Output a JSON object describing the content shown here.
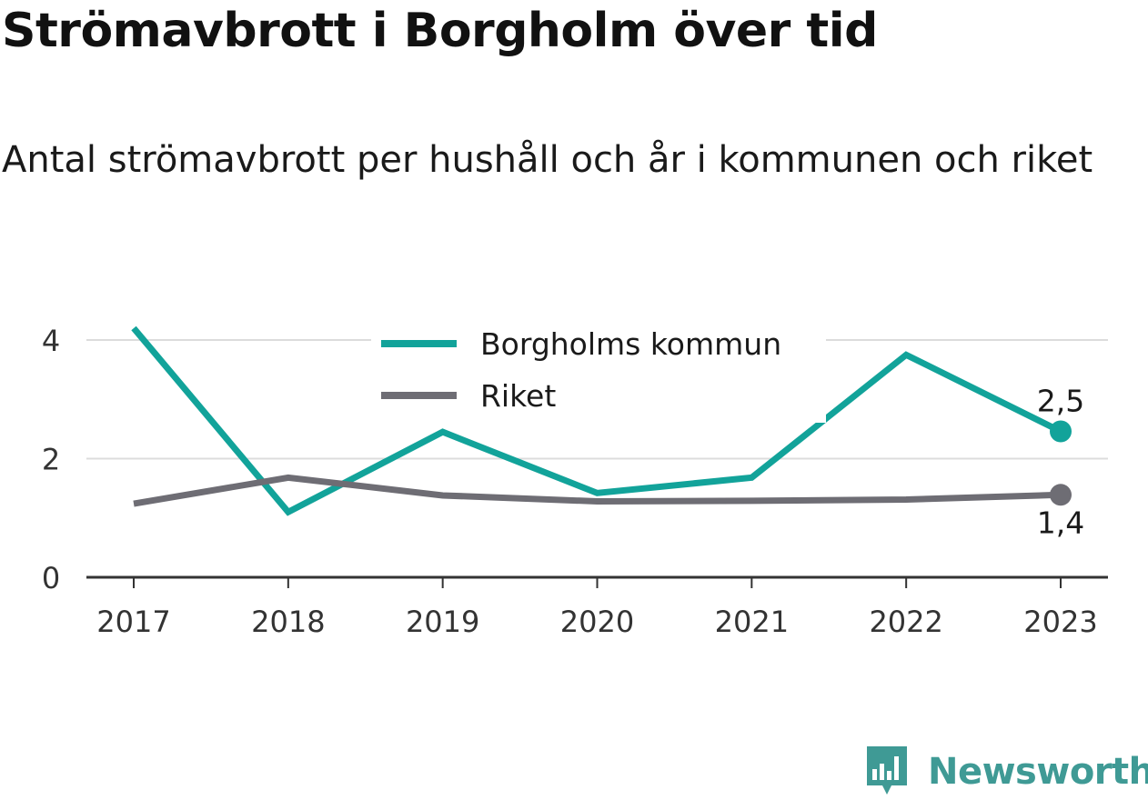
{
  "chart_data": {
    "type": "line",
    "title": "Strömavbrott i Borgholm över tid",
    "subtitle": "Antal strömavbrott per hushåll och år i kommunen och riket",
    "x": [
      "2017",
      "2018",
      "2019",
      "2020",
      "2021",
      "2022",
      "2023"
    ],
    "yticks": [
      0,
      2,
      4
    ],
    "ylim": [
      0,
      4.5
    ],
    "grid": true,
    "legend_position": "top-center",
    "series": [
      {
        "name": "Borgholms kommun",
        "color": "#12a39a",
        "values": [
          4.2,
          1.1,
          2.45,
          1.42,
          1.68,
          3.75,
          2.46
        ],
        "end_label": "2,5"
      },
      {
        "name": "Riket",
        "color": "#6e6d74",
        "values": [
          1.24,
          1.68,
          1.38,
          1.28,
          1.29,
          1.31,
          1.39
        ],
        "end_label": "1,4"
      }
    ]
  },
  "brand": {
    "name": "Newsworthy",
    "color": "#3f9a95",
    "icon": "bar-chart-speech-bubble-icon"
  }
}
